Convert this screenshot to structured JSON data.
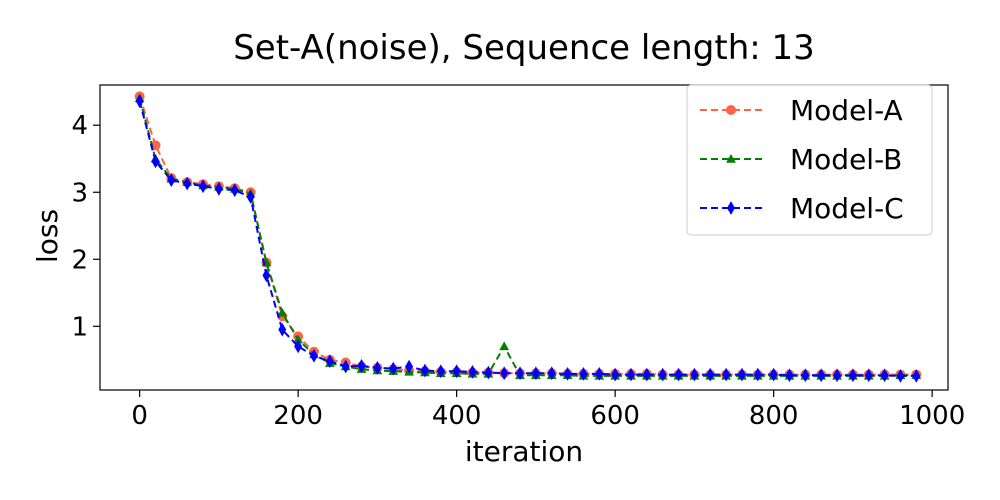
{
  "chart_data": {
    "type": "line",
    "title": "Set-A(noise), Sequence length: 13",
    "xlabel": "iteration",
    "ylabel": "loss",
    "xlim": [
      -50,
      1020
    ],
    "ylim": [
      0.05,
      4.6
    ],
    "xticks": [
      0,
      200,
      400,
      600,
      800,
      1000
    ],
    "yticks": [
      1,
      2,
      3,
      4
    ],
    "grid": false,
    "legend_position": "top-right",
    "x": [
      0,
      20,
      40,
      60,
      80,
      100,
      120,
      140,
      160,
      180,
      200,
      220,
      240,
      260,
      280,
      300,
      320,
      340,
      360,
      380,
      400,
      420,
      440,
      460,
      480,
      500,
      520,
      540,
      560,
      580,
      600,
      620,
      640,
      660,
      680,
      700,
      720,
      740,
      760,
      780,
      800,
      820,
      840,
      860,
      880,
      900,
      920,
      940,
      960,
      980
    ],
    "series": [
      {
        "name": "Model-A",
        "color": "#ff6347",
        "marker": "circle",
        "values": [
          4.43,
          3.7,
          3.21,
          3.15,
          3.12,
          3.09,
          3.06,
          3.0,
          1.95,
          1.15,
          0.85,
          0.62,
          0.5,
          0.46,
          0.4,
          0.38,
          0.36,
          0.34,
          0.33,
          0.32,
          0.32,
          0.31,
          0.31,
          0.3,
          0.3,
          0.3,
          0.3,
          0.29,
          0.29,
          0.29,
          0.29,
          0.29,
          0.29,
          0.28,
          0.28,
          0.28,
          0.28,
          0.28,
          0.28,
          0.28,
          0.28,
          0.28,
          0.28,
          0.28,
          0.28,
          0.28,
          0.28,
          0.28,
          0.28,
          0.28
        ]
      },
      {
        "name": "Model-B",
        "color": "#008000",
        "marker": "triangle",
        "values": [
          4.4,
          3.5,
          3.2,
          3.15,
          3.1,
          3.08,
          3.05,
          2.98,
          1.95,
          1.2,
          0.8,
          0.58,
          0.45,
          0.4,
          0.36,
          0.34,
          0.33,
          0.32,
          0.31,
          0.3,
          0.3,
          0.29,
          0.29,
          0.7,
          0.27,
          0.27,
          0.27,
          0.27,
          0.26,
          0.26,
          0.26,
          0.26,
          0.26,
          0.26,
          0.26,
          0.26,
          0.26,
          0.26,
          0.26,
          0.26,
          0.26,
          0.26,
          0.26,
          0.26,
          0.26,
          0.26,
          0.26,
          0.26,
          0.27,
          0.27
        ]
      },
      {
        "name": "Model-C",
        "color": "#0000ff",
        "marker": "diamond",
        "values": [
          4.36,
          3.46,
          3.18,
          3.13,
          3.09,
          3.05,
          3.03,
          2.93,
          1.76,
          0.95,
          0.7,
          0.56,
          0.48,
          0.4,
          0.41,
          0.38,
          0.37,
          0.4,
          0.34,
          0.33,
          0.33,
          0.32,
          0.31,
          0.3,
          0.3,
          0.3,
          0.3,
          0.29,
          0.29,
          0.29,
          0.28,
          0.28,
          0.28,
          0.28,
          0.28,
          0.28,
          0.28,
          0.28,
          0.28,
          0.28,
          0.28,
          0.27,
          0.27,
          0.27,
          0.27,
          0.27,
          0.27,
          0.27,
          0.26,
          0.26
        ]
      }
    ]
  }
}
